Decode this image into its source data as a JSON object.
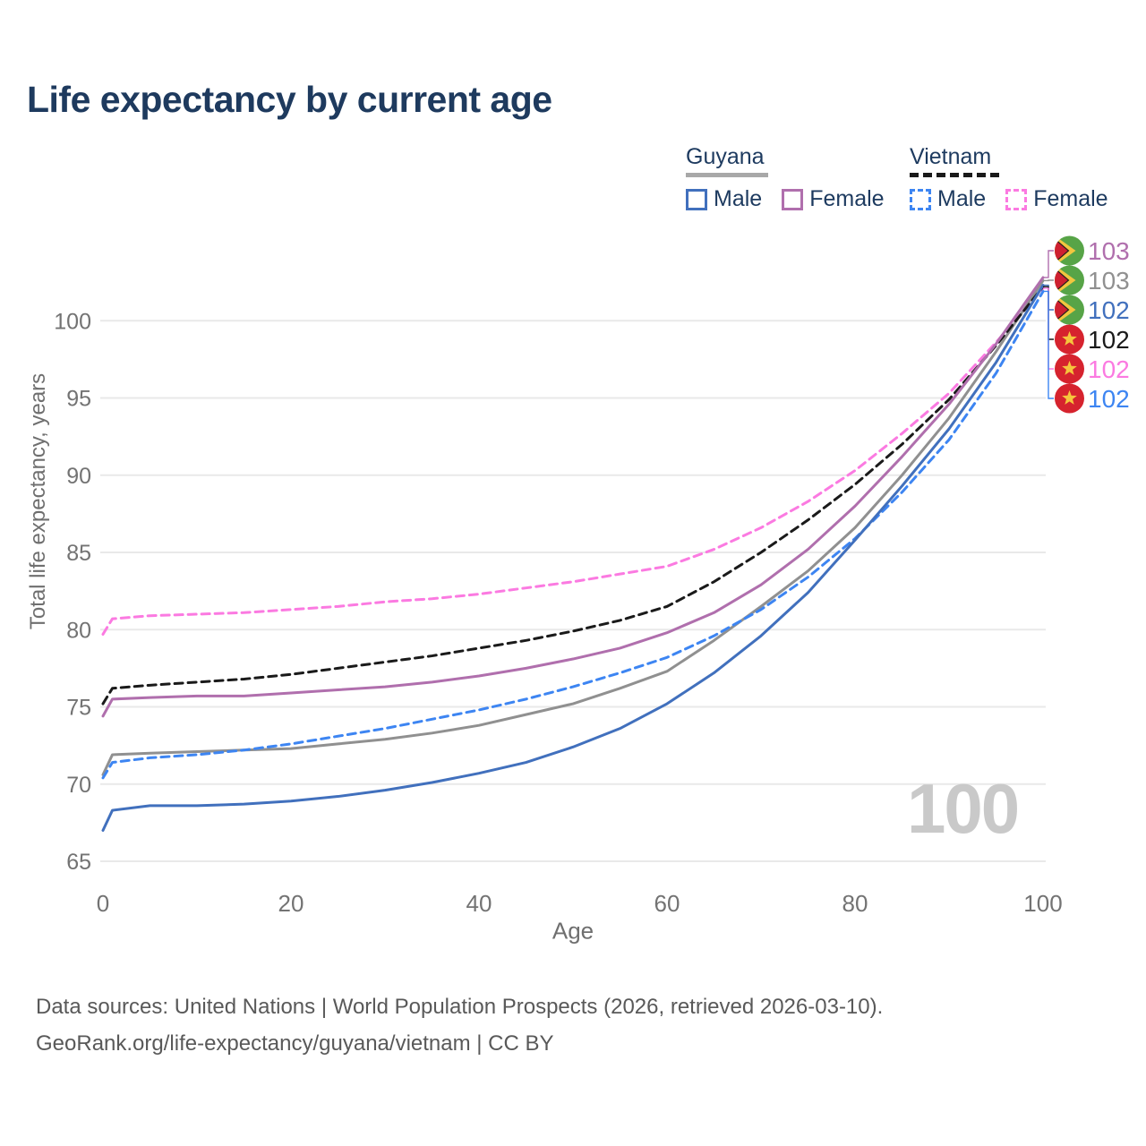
{
  "title": "Life expectancy by current age",
  "watermark": "100",
  "legend": {
    "groups": [
      {
        "label": "Guyana",
        "line_style": "solid",
        "underline_color": "#a8a8a8",
        "items": [
          {
            "label": "Male",
            "color": "#4170bd",
            "dash": false
          },
          {
            "label": "Female",
            "color": "#b06fad",
            "dash": false
          }
        ]
      },
      {
        "label": "Vietnam",
        "line_style": "dashed",
        "underline_color": "#1a1a1a",
        "items": [
          {
            "label": "Male",
            "color": "#3d85f2",
            "dash": true
          },
          {
            "label": "Female",
            "color": "#fb7ae1",
            "dash": true
          }
        ]
      }
    ]
  },
  "chart_data": {
    "type": "line",
    "title": "Life expectancy by current age",
    "xlabel": "Age",
    "ylabel": "Total life expectancy, years",
    "grid": true,
    "legend_position": "top-right",
    "xlim": [
      0,
      100
    ],
    "ylim": [
      65,
      104
    ],
    "x_ticks": [
      0,
      20,
      40,
      60,
      80,
      100
    ],
    "y_ticks": [
      65,
      70,
      75,
      80,
      85,
      90,
      95,
      100
    ],
    "x": [
      0,
      1,
      5,
      10,
      15,
      20,
      25,
      30,
      35,
      40,
      45,
      50,
      55,
      60,
      65,
      70,
      75,
      80,
      85,
      90,
      95,
      100
    ],
    "series": [
      {
        "name": "Guyana Female",
        "country": "Guyana",
        "sex": "Female",
        "color": "#b06fad",
        "line_style": "solid",
        "flag": "guyana",
        "end_label": "103",
        "values": [
          74.4,
          75.5,
          75.6,
          75.7,
          75.7,
          75.9,
          76.1,
          76.3,
          76.6,
          77.0,
          77.5,
          78.1,
          78.8,
          79.8,
          81.1,
          82.9,
          85.2,
          88.0,
          91.2,
          94.6,
          98.5,
          102.8
        ]
      },
      {
        "name": "Guyana Both sexes",
        "country": "Guyana",
        "sex": "Both",
        "color": "#909090",
        "line_style": "solid",
        "flag": "guyana",
        "end_label": "103",
        "values": [
          70.6,
          71.9,
          72.0,
          72.1,
          72.2,
          72.3,
          72.6,
          72.9,
          73.3,
          73.8,
          74.5,
          75.2,
          76.2,
          77.3,
          79.3,
          81.5,
          83.8,
          86.6,
          90.0,
          93.7,
          98.0,
          102.6
        ]
      },
      {
        "name": "Guyana Male",
        "country": "Guyana",
        "sex": "Male",
        "color": "#4170bd",
        "line_style": "solid",
        "flag": "guyana",
        "end_label": "102",
        "values": [
          67.0,
          68.3,
          68.6,
          68.6,
          68.7,
          68.9,
          69.2,
          69.6,
          70.1,
          70.7,
          71.4,
          72.4,
          73.6,
          75.2,
          77.2,
          79.6,
          82.4,
          85.8,
          89.3,
          93.0,
          97.3,
          102.3
        ]
      },
      {
        "name": "Vietnam Both sexes",
        "country": "Vietnam",
        "sex": "Both",
        "color": "#1a1a1a",
        "line_style": "dashed",
        "flag": "vietnam",
        "end_label": "102",
        "values": [
          75.2,
          76.2,
          76.4,
          76.6,
          76.8,
          77.1,
          77.5,
          77.9,
          78.3,
          78.8,
          79.3,
          79.9,
          80.6,
          81.5,
          83.1,
          85.0,
          87.1,
          89.4,
          92.0,
          94.9,
          98.4,
          102.2
        ]
      },
      {
        "name": "Vietnam Female",
        "country": "Vietnam",
        "sex": "Female",
        "color": "#fb7ae1",
        "line_style": "dashed",
        "flag": "vietnam",
        "end_label": "102",
        "values": [
          79.7,
          80.7,
          80.9,
          81.0,
          81.1,
          81.3,
          81.5,
          81.8,
          82.0,
          82.3,
          82.7,
          83.1,
          83.6,
          84.1,
          85.2,
          86.6,
          88.3,
          90.3,
          92.7,
          95.3,
          98.6,
          102.1
        ]
      },
      {
        "name": "Vietnam Male",
        "country": "Vietnam",
        "sex": "Male",
        "color": "#3d85f2",
        "line_style": "dashed",
        "flag": "vietnam",
        "end_label": "102",
        "values": [
          70.4,
          71.4,
          71.7,
          71.9,
          72.2,
          72.6,
          73.1,
          73.6,
          74.2,
          74.8,
          75.5,
          76.3,
          77.2,
          78.2,
          79.6,
          81.3,
          83.4,
          85.9,
          88.9,
          92.3,
          96.6,
          101.9
        ]
      }
    ]
  },
  "footer": {
    "line1": "Data sources: United Nations | World Population Prospects (2026, retrieved 2026-03-10).",
    "line2": "GeoRank.org/life-expectancy/guyana/vietnam | CC BY"
  }
}
